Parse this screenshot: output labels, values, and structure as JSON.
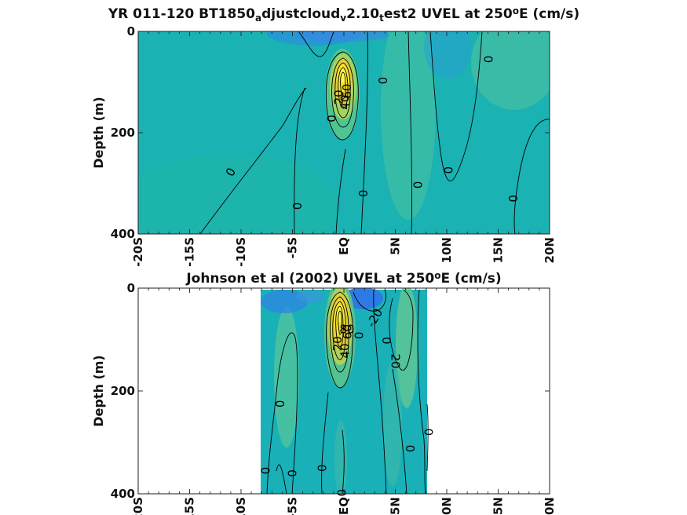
{
  "figure": {
    "colors": {
      "background": "#ffffff",
      "field_base": "#19b3b3",
      "field_neg": "#2f7fe0",
      "field_pos_mid": "#56c4a0",
      "field_pos_high": "#f6e81c",
      "field_peak": "#fdf53a",
      "contour": "#000000"
    }
  },
  "chart_data": [
    {
      "type": "heatmap",
      "title_parts": [
        "YR 011-120 BT1850",
        "a",
        "djustcloud",
        "v",
        "2.10",
        "t",
        "est2 UVEL at 250",
        "o",
        "E (cm/s)"
      ],
      "ylabel": "Depth (m)",
      "x_ticks": [
        "-20S",
        "-15S",
        "-10S",
        "-5S",
        "EQ",
        "5N",
        "10N",
        "15N",
        "20N"
      ],
      "x_tick_values": [
        -20,
        -15,
        -10,
        -5,
        0,
        5,
        10,
        15,
        20
      ],
      "y_ticks": [
        "0",
        "200",
        "400"
      ],
      "y_tick_values": [
        0,
        200,
        400
      ],
      "xlim": [
        -20,
        20
      ],
      "ylim": [
        0,
        400
      ],
      "y_reversed": true,
      "data_xrange": [
        -20,
        20
      ],
      "features": [
        {
          "kind": "undercurrent_core",
          "lat": 0,
          "depth": 95,
          "value": 80
        },
        {
          "kind": "westward_surface",
          "lat": 1.5,
          "depth": 0,
          "value": -20
        },
        {
          "kind": "countercurrent",
          "lat": 6.5,
          "depth": 100,
          "value": 10
        }
      ],
      "contour_labels": [
        {
          "text": "0",
          "lat": 14.1,
          "depth": 55,
          "angle": -90
        },
        {
          "text": "0",
          "lat": 3.8,
          "depth": 97,
          "angle": -90
        },
        {
          "text": "0",
          "lat": -1.2,
          "depth": 172,
          "angle": -90
        },
        {
          "text": "0",
          "lat": -11,
          "depth": 278,
          "angle": -60
        },
        {
          "text": "0",
          "lat": -4.5,
          "depth": 345,
          "angle": -90
        },
        {
          "text": "0",
          "lat": 1.9,
          "depth": 320,
          "angle": -90
        },
        {
          "text": "0",
          "lat": 7.2,
          "depth": 303,
          "angle": -90
        },
        {
          "text": "0",
          "lat": 10.2,
          "depth": 274,
          "angle": -90
        },
        {
          "text": "0",
          "lat": 16.5,
          "depth": 330,
          "angle": -90
        },
        {
          "text": "20",
          "lat": -0.5,
          "depth": 130,
          "angle": -90
        },
        {
          "text": "40",
          "lat": 0.1,
          "depth": 140,
          "angle": -90
        },
        {
          "text": "60",
          "lat": 0.3,
          "depth": 118,
          "angle": -90
        }
      ]
    },
    {
      "type": "heatmap",
      "title_parts": [
        "Johnson et al (2002) UVEL at 250",
        "o",
        "E (cm/s)"
      ],
      "ylabel": "Depth (m)",
      "x_ticks": [
        "-20S",
        "-15S",
        "-10S",
        "-5S",
        "EQ",
        "5N",
        "10N",
        "15N",
        "20N"
      ],
      "x_tick_values": [
        -20,
        -15,
        -10,
        -5,
        0,
        5,
        10,
        15,
        20
      ],
      "y_ticks": [
        "0",
        "200",
        "400"
      ],
      "y_tick_values": [
        0,
        200,
        400
      ],
      "xlim": [
        -20,
        20
      ],
      "ylim": [
        0,
        400
      ],
      "y_reversed": true,
      "data_xrange": [
        -8,
        8.5
      ],
      "features": [
        {
          "kind": "undercurrent_core",
          "lat": 0,
          "depth": 70,
          "value": 80
        },
        {
          "kind": "westward_surface",
          "lat": 2.5,
          "depth": 10,
          "value": -20
        },
        {
          "kind": "countercurrent",
          "lat": 6,
          "depth": 80,
          "value": 20
        }
      ],
      "contour_labels": [
        {
          "text": "0",
          "lat": -6.2,
          "depth": 225,
          "angle": -90
        },
        {
          "text": "0",
          "lat": -7.6,
          "depth": 355,
          "angle": -90
        },
        {
          "text": "0",
          "lat": -5,
          "depth": 360,
          "angle": -90
        },
        {
          "text": "0",
          "lat": -2.1,
          "depth": 350,
          "angle": -90
        },
        {
          "text": "0",
          "lat": -0.2,
          "depth": 398,
          "angle": -90
        },
        {
          "text": "0",
          "lat": 1.5,
          "depth": 92,
          "angle": -90
        },
        {
          "text": "0",
          "lat": 4.2,
          "depth": 102,
          "angle": -90
        },
        {
          "text": "0",
          "lat": 6.5,
          "depth": 312,
          "angle": -90
        },
        {
          "text": "0",
          "lat": 8.3,
          "depth": 280,
          "angle": -90
        },
        {
          "text": "-20",
          "lat": 3.0,
          "depth": 58,
          "angle": -60
        },
        {
          "text": "20",
          "lat": 5.0,
          "depth": 142,
          "angle": 90
        },
        {
          "text": "20",
          "lat": -0.6,
          "depth": 108,
          "angle": -90
        },
        {
          "text": "40",
          "lat": 0.1,
          "depth": 122,
          "angle": -90
        },
        {
          "text": "60",
          "lat": 0.35,
          "depth": 85,
          "angle": -90
        },
        {
          "text": "80",
          "lat": 0.3,
          "depth": 80,
          "angle": 0
        }
      ]
    }
  ]
}
